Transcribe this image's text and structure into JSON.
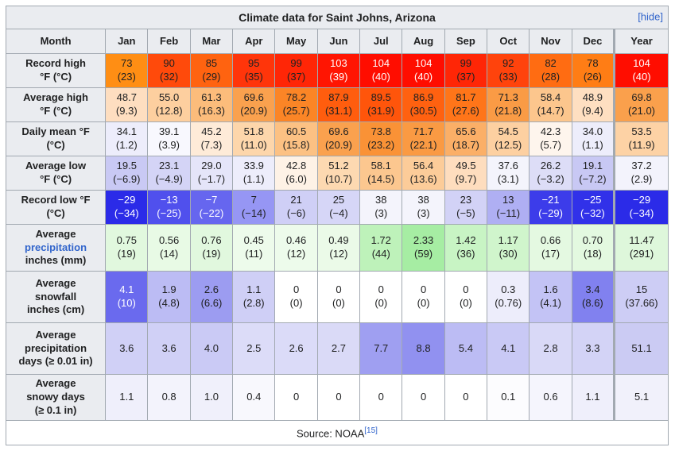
{
  "title": "Climate data for Saint Johns, Arizona",
  "hide_label": "[hide]",
  "link_color": "#3366cc",
  "border_color": "#a2a9b1",
  "header_bg": "#eaecf0",
  "columns": [
    "Month",
    "Jan",
    "Feb",
    "Mar",
    "Apr",
    "May",
    "Jun",
    "Jul",
    "Aug",
    "Sep",
    "Oct",
    "Nov",
    "Dec",
    "Year"
  ],
  "footer": {
    "text": "Source: NOAA",
    "ref": "[15]"
  },
  "chart_data": {
    "type": "table",
    "title": "Climate data for Saint Johns, Arizona",
    "categories": [
      "Jan",
      "Feb",
      "Mar",
      "Apr",
      "May",
      "Jun",
      "Jul",
      "Aug",
      "Sep",
      "Oct",
      "Nov",
      "Dec",
      "Year"
    ],
    "series": [
      {
        "name": "Record high °F",
        "values": [
          73,
          90,
          85,
          95,
          99,
          103,
          104,
          104,
          99,
          92,
          82,
          78,
          104
        ]
      },
      {
        "name": "Record high °C",
        "values": [
          23,
          32,
          29,
          35,
          37,
          39,
          40,
          40,
          37,
          33,
          28,
          26,
          40
        ]
      },
      {
        "name": "Average high °F",
        "values": [
          48.7,
          55.0,
          61.3,
          69.6,
          78.2,
          87.9,
          89.5,
          86.9,
          81.7,
          71.3,
          58.4,
          48.9,
          69.8
        ]
      },
      {
        "name": "Average high °C",
        "values": [
          9.3,
          12.8,
          16.3,
          20.9,
          25.7,
          31.1,
          31.9,
          30.5,
          27.6,
          21.8,
          14.7,
          9.4,
          21.0
        ]
      },
      {
        "name": "Daily mean °F",
        "values": [
          34.1,
          39.1,
          45.2,
          51.8,
          60.5,
          69.6,
          73.8,
          71.7,
          65.6,
          54.5,
          42.3,
          34.0,
          53.5
        ]
      },
      {
        "name": "Daily mean °C",
        "values": [
          1.2,
          3.9,
          7.3,
          11.0,
          15.8,
          20.9,
          23.2,
          22.1,
          18.7,
          12.5,
          5.7,
          1.1,
          11.9
        ]
      },
      {
        "name": "Average low °F",
        "values": [
          19.5,
          23.1,
          29.0,
          33.9,
          42.8,
          51.2,
          58.1,
          56.4,
          49.5,
          37.6,
          26.2,
          19.1,
          37.2
        ]
      },
      {
        "name": "Average low °C",
        "values": [
          -6.9,
          -4.9,
          -1.7,
          1.1,
          6.0,
          10.7,
          14.5,
          13.6,
          9.7,
          3.1,
          -3.2,
          -7.2,
          2.9
        ]
      },
      {
        "name": "Record low °F",
        "values": [
          -29,
          -13,
          -7,
          7,
          21,
          25,
          38,
          38,
          23,
          13,
          -21,
          -25,
          -29
        ]
      },
      {
        "name": "Record low °C",
        "values": [
          -34,
          -25,
          -22,
          -14,
          -6,
          -4,
          3,
          3,
          -5,
          -11,
          -29,
          -32,
          -34
        ]
      },
      {
        "name": "Average precipitation inches",
        "values": [
          0.75,
          0.56,
          0.76,
          0.45,
          0.46,
          0.49,
          1.72,
          2.33,
          1.42,
          1.17,
          0.66,
          0.7,
          11.47
        ]
      },
      {
        "name": "Average precipitation mm",
        "values": [
          19,
          14,
          19,
          11,
          12,
          12,
          44,
          59,
          36,
          30,
          17,
          18,
          291
        ]
      },
      {
        "name": "Average snowfall inches",
        "values": [
          4.1,
          1.9,
          2.6,
          1.1,
          0,
          0,
          0,
          0,
          0,
          0.3,
          1.6,
          3.4,
          15
        ]
      },
      {
        "name": "Average snowfall cm",
        "values": [
          10,
          4.8,
          6.6,
          2.8,
          0,
          0,
          0,
          0,
          0,
          0.76,
          4.1,
          8.6,
          37.66
        ]
      },
      {
        "name": "Average precipitation days (≥ 0.01 in)",
        "values": [
          3.6,
          3.6,
          4.0,
          2.5,
          2.6,
          2.7,
          7.7,
          8.8,
          5.4,
          4.1,
          2.8,
          3.3,
          51.1
        ]
      },
      {
        "name": "Average snowy days (≥ 0.1 in)",
        "values": [
          1.1,
          0.8,
          1.0,
          0.4,
          0,
          0,
          0,
          0,
          0,
          0.1,
          0.6,
          1.1,
          5.1
        ]
      }
    ]
  },
  "rows": [
    {
      "id": "record-high",
      "cls": "h2",
      "label_lines": [
        "Record high",
        "°F (°C)"
      ],
      "cells": [
        {
          "v": "73",
          "s": "(23)",
          "bg": "#FF8E14"
        },
        {
          "v": "90",
          "s": "(32)",
          "bg": "#FF4A0B"
        },
        {
          "v": "85",
          "s": "(29)",
          "bg": "#FF6310"
        },
        {
          "v": "95",
          "s": "(35)",
          "bg": "#FF350A"
        },
        {
          "v": "99",
          "s": "(37)",
          "bg": "#FF2606"
        },
        {
          "v": "103",
          "s": "(39)",
          "bg": "#FF1502",
          "fg": "#FFFFFF"
        },
        {
          "v": "104",
          "s": "(40)",
          "bg": "#FF0D00",
          "fg": "#FFFFFF"
        },
        {
          "v": "104",
          "s": "(40)",
          "bg": "#FF0D00",
          "fg": "#FFFFFF"
        },
        {
          "v": "99",
          "s": "(37)",
          "bg": "#FF2606"
        },
        {
          "v": "92",
          "s": "(33)",
          "bg": "#FF430C"
        },
        {
          "v": "82",
          "s": "(28)",
          "bg": "#FF6C12"
        },
        {
          "v": "78",
          "s": "(26)",
          "bg": "#FF7D15"
        },
        {
          "v": "104",
          "s": "(40)",
          "bg": "#FF0D00",
          "fg": "#FFFFFF"
        }
      ]
    },
    {
      "id": "avg-high",
      "cls": "h2",
      "label_lines": [
        "Average high",
        "°F (°C)"
      ],
      "cells": [
        {
          "v": "48.7",
          "s": "(9.3)",
          "bg": "#FEDEC0"
        },
        {
          "v": "55.0",
          "s": "(12.8)",
          "bg": "#FDCF9F"
        },
        {
          "v": "61.3",
          "s": "(16.3)",
          "bg": "#FCBC7B"
        },
        {
          "v": "69.6",
          "s": "(20.9)",
          "bg": "#FAA14E"
        },
        {
          "v": "78.2",
          "s": "(25.7)",
          "bg": "#FB8526"
        },
        {
          "v": "87.9",
          "s": "(31.1)",
          "bg": "#FF5D0E"
        },
        {
          "v": "89.5",
          "s": "(31.9)",
          "bg": "#FF550B"
        },
        {
          "v": "86.9",
          "s": "(30.5)",
          "bg": "#FF6110"
        },
        {
          "v": "81.7",
          "s": "(27.6)",
          "bg": "#FF7519"
        },
        {
          "v": "71.3",
          "s": "(21.8)",
          "bg": "#FA9B45"
        },
        {
          "v": "58.4",
          "s": "(14.7)",
          "bg": "#FCC68D"
        },
        {
          "v": "48.9",
          "s": "(9.4)",
          "bg": "#FEDFC1"
        },
        {
          "v": "69.8",
          "s": "(21.0)",
          "bg": "#FAA04C"
        }
      ]
    },
    {
      "id": "daily-mean",
      "cls": "h2",
      "label_lines": [
        "Daily mean °F",
        "(°C)"
      ],
      "cells": [
        {
          "v": "34.1",
          "s": "(1.2)",
          "bg": "#EDEDFB"
        },
        {
          "v": "39.1",
          "s": "(3.9)",
          "bg": "#F8F8FE"
        },
        {
          "v": "45.2",
          "s": "(7.3)",
          "bg": "#FEEBD8"
        },
        {
          "v": "51.8",
          "s": "(11.0)",
          "bg": "#FDD6AB"
        },
        {
          "v": "60.5",
          "s": "(15.8)",
          "bg": "#FCC183"
        },
        {
          "v": "69.6",
          "s": "(20.9)",
          "bg": "#FAA14E"
        },
        {
          "v": "73.8",
          "s": "(23.2)",
          "bg": "#FA9236"
        },
        {
          "v": "71.7",
          "s": "(22.1)",
          "bg": "#FA9A43"
        },
        {
          "v": "65.6",
          "s": "(18.7)",
          "bg": "#FBAF67"
        },
        {
          "v": "54.5",
          "s": "(12.5)",
          "bg": "#FDD0A1"
        },
        {
          "v": "42.3",
          "s": "(5.7)",
          "bg": "#FEF5ED"
        },
        {
          "v": "34.0",
          "s": "(1.1)",
          "bg": "#EDEDFB"
        },
        {
          "v": "53.5",
          "s": "(11.9)",
          "bg": "#FDD2A5"
        }
      ]
    },
    {
      "id": "avg-low",
      "cls": "h2",
      "label_lines": [
        "Average low",
        "°F (°C)"
      ],
      "cells": [
        {
          "v": "19.5",
          "s": "(−6.9)",
          "bg": "#C9C9F4"
        },
        {
          "v": "23.1",
          "s": "(−4.9)",
          "bg": "#D4D4F6"
        },
        {
          "v": "29.0",
          "s": "(−1.7)",
          "bg": "#E5E5F9"
        },
        {
          "v": "33.9",
          "s": "(1.1)",
          "bg": "#EDEDFB"
        },
        {
          "v": "42.8",
          "s": "(6.0)",
          "bg": "#FEF2E6"
        },
        {
          "v": "51.2",
          "s": "(10.7)",
          "bg": "#FDD9B1"
        },
        {
          "v": "58.1",
          "s": "(14.5)",
          "bg": "#FCC78F"
        },
        {
          "v": "56.4",
          "s": "(13.6)",
          "bg": "#FCCC99"
        },
        {
          "v": "49.5",
          "s": "(9.7)",
          "bg": "#FEDDBE"
        },
        {
          "v": "37.6",
          "s": "(3.1)",
          "bg": "#F4F4FC"
        },
        {
          "v": "26.2",
          "s": "(−3.2)",
          "bg": "#DDDDF7"
        },
        {
          "v": "19.1",
          "s": "(−7.2)",
          "bg": "#C8C8F4"
        },
        {
          "v": "37.2",
          "s": "(2.9)",
          "bg": "#F3F3FC"
        }
      ]
    },
    {
      "id": "record-low",
      "cls": "h2",
      "label_lines": [
        "Record low °F",
        "(°C)"
      ],
      "cells": [
        {
          "v": "−29",
          "s": "(−34)",
          "bg": "#2B2BE8",
          "fg": "#FFFFFF"
        },
        {
          "v": "−13",
          "s": "(−25)",
          "bg": "#5050ED",
          "fg": "#FFFFFF"
        },
        {
          "v": "−7",
          "s": "(−22)",
          "bg": "#6666EF",
          "fg": "#FFFFFF"
        },
        {
          "v": "7",
          "s": "(−14)",
          "bg": "#9696F4"
        },
        {
          "v": "21",
          "s": "(−6)",
          "bg": "#CFCFF6"
        },
        {
          "v": "25",
          "s": "(−4)",
          "bg": "#D6D6F7"
        },
        {
          "v": "38",
          "s": "(3)",
          "bg": "#F4F4FC"
        },
        {
          "v": "38",
          "s": "(3)",
          "bg": "#F4F4FC"
        },
        {
          "v": "23",
          "s": "(−5)",
          "bg": "#D2D2F6"
        },
        {
          "v": "13",
          "s": "(−11)",
          "bg": "#AFAFF3"
        },
        {
          "v": "−21",
          "s": "(−29)",
          "bg": "#3C3CEA",
          "fg": "#FFFFFF"
        },
        {
          "v": "−25",
          "s": "(−32)",
          "bg": "#3131E9",
          "fg": "#FFFFFF"
        },
        {
          "v": "−29",
          "s": "(−34)",
          "bg": "#2B2BE8",
          "fg": "#FFFFFF"
        }
      ]
    },
    {
      "id": "precipitation",
      "label_lines": [
        "Average",
        {
          "text": "precipitation",
          "link": true
        },
        "inches (mm)"
      ],
      "cells": [
        {
          "v": "0.75",
          "s": "(19)",
          "bg": "#E1F8DE"
        },
        {
          "v": "0.56",
          "s": "(14)",
          "bg": "#E8FAE5"
        },
        {
          "v": "0.76",
          "s": "(19)",
          "bg": "#E1F8DE"
        },
        {
          "v": "0.45",
          "s": "(11)",
          "bg": "#EDFBEB"
        },
        {
          "v": "0.46",
          "s": "(12)",
          "bg": "#EDFBEB"
        },
        {
          "v": "0.49",
          "s": "(12)",
          "bg": "#EBFAE8"
        },
        {
          "v": "1.72",
          "s": "(44)",
          "bg": "#BEF2BA"
        },
        {
          "v": "2.33",
          "s": "(59)",
          "bg": "#A6EDA3"
        },
        {
          "v": "1.42",
          "s": "(36)",
          "bg": "#C8F4C4"
        },
        {
          "v": "1.17",
          "s": "(30)",
          "bg": "#D0F5CC"
        },
        {
          "v": "0.66",
          "s": "(17)",
          "bg": "#E4F9E1"
        },
        {
          "v": "0.70",
          "s": "(18)",
          "bg": "#E3F9E0"
        },
        {
          "v": "11.47",
          "s": "(291)",
          "bg": "#DEF7DB"
        }
      ]
    },
    {
      "id": "snowfall",
      "label_lines": [
        "Average",
        "snowfall",
        "inches (cm)"
      ],
      "cells": [
        {
          "v": "4.1",
          "s": "(10)",
          "bg": "#6A6AEE",
          "fg": "#FFFFFF"
        },
        {
          "v": "1.9",
          "s": "(4.8)",
          "bg": "#BCBCF4"
        },
        {
          "v": "2.6",
          "s": "(6.6)",
          "bg": "#9C9CF1"
        },
        {
          "v": "1.1",
          "s": "(2.8)",
          "bg": "#CFCFF6"
        },
        {
          "v": "0",
          "s": "(0)",
          "bg": "#FFFFFF"
        },
        {
          "v": "0",
          "s": "(0)",
          "bg": "#FFFFFF"
        },
        {
          "v": "0",
          "s": "(0)",
          "bg": "#FFFFFF"
        },
        {
          "v": "0",
          "s": "(0)",
          "bg": "#FFFFFF"
        },
        {
          "v": "0",
          "s": "(0)",
          "bg": "#FFFFFF"
        },
        {
          "v": "0.3",
          "s": "(0.76)",
          "bg": "#EDEDFB"
        },
        {
          "v": "1.6",
          "s": "(4.1)",
          "bg": "#C3C3F5"
        },
        {
          "v": "3.4",
          "s": "(8.6)",
          "bg": "#8181EF"
        },
        {
          "v": "15",
          "s": "(37.66)",
          "bg": "#CDCDF5"
        }
      ]
    },
    {
      "id": "precip-days",
      "label_lines": [
        "Average",
        "precipitation",
        "days (≥ 0.01 in)"
      ],
      "cells": [
        {
          "v": "3.6",
          "bg": "#D0D0F6"
        },
        {
          "v": "3.6",
          "bg": "#D0D0F6"
        },
        {
          "v": "4.0",
          "bg": "#CACAF5"
        },
        {
          "v": "2.5",
          "bg": "#DCDCF8"
        },
        {
          "v": "2.6",
          "bg": "#DBDBF8"
        },
        {
          "v": "2.7",
          "bg": "#DADAF7"
        },
        {
          "v": "7.7",
          "bg": "#9F9FF1"
        },
        {
          "v": "8.8",
          "bg": "#9191F0"
        },
        {
          "v": "5.4",
          "bg": "#BCBCF4"
        },
        {
          "v": "4.1",
          "bg": "#C9C9F5"
        },
        {
          "v": "2.8",
          "bg": "#D9D9F7"
        },
        {
          "v": "3.3",
          "bg": "#D3D3F6"
        },
        {
          "v": "51.1",
          "bg": "#CBCBF3"
        }
      ]
    },
    {
      "id": "snowy-days",
      "label_lines": [
        "Average",
        "snowy days",
        "(≥ 0.1 in)"
      ],
      "cells": [
        {
          "v": "1.1",
          "bg": "#EFEFFB"
        },
        {
          "v": "0.8",
          "bg": "#F3F3FC"
        },
        {
          "v": "1.0",
          "bg": "#F0F0FB"
        },
        {
          "v": "0.4",
          "bg": "#F8F8FD"
        },
        {
          "v": "0",
          "bg": "#FFFFFF"
        },
        {
          "v": "0",
          "bg": "#FFFFFF"
        },
        {
          "v": "0",
          "bg": "#FFFFFF"
        },
        {
          "v": "0",
          "bg": "#FFFFFF"
        },
        {
          "v": "0",
          "bg": "#FFFFFF"
        },
        {
          "v": "0.1",
          "bg": "#FCFCFE"
        },
        {
          "v": "0.6",
          "bg": "#F5F5FD"
        },
        {
          "v": "1.1",
          "bg": "#EFEFFB"
        },
        {
          "v": "5.1",
          "bg": "#F1F1FB"
        }
      ]
    }
  ]
}
